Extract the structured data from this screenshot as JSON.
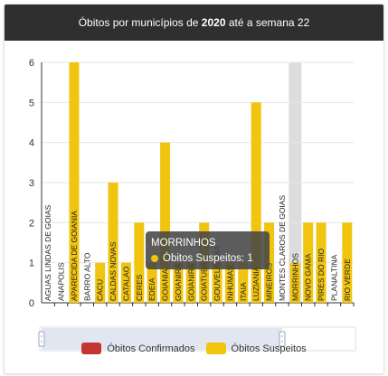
{
  "header": {
    "title_prefix": "Óbitos por municípios de",
    "year": "2020",
    "title_mid": "até a semana",
    "week": "22"
  },
  "colors": {
    "confirmed": "#c23531",
    "suspected": "#f1c40f",
    "highlight": "#dddddd",
    "header_bg": "#2f2f2f"
  },
  "chart_data": {
    "type": "bar",
    "ylim": [
      0,
      6
    ],
    "yticks": [
      0,
      1,
      2,
      3,
      4,
      5,
      6
    ],
    "categories": [
      "AGUAS LINDAS DE GOIAS",
      "ANAPOLIS",
      "APARECIDA DE GOIANIA",
      "BARRO ALTO",
      "CACU",
      "CALDAS NOVAS",
      "CATALAO",
      "CERES",
      "EDEIA",
      "GOIANIA",
      "GOIANIRA",
      "GOIANIRA",
      "GOIATUBA",
      "GOUVELANDIA",
      "INHUMAS",
      "ITAIA",
      "LUZIANIA",
      "MINEIROS",
      "MONTES CLAROS DE GOIAS",
      "MORRINHOS",
      "NOVO GAMA",
      "PIRES DO RIO",
      "PLANALTINA",
      "RIO VERDE"
    ],
    "series": [
      {
        "name": "Óbitos Confirmados",
        "values": [
          0,
          0,
          0,
          0,
          0,
          0,
          0,
          0,
          0,
          0,
          0,
          0,
          0,
          0,
          0,
          0,
          0,
          0,
          0,
          0,
          0,
          0,
          0,
          0
        ]
      },
      {
        "name": "Óbitos Suspeitos",
        "values": [
          0,
          0,
          6,
          0,
          1,
          3,
          1,
          2,
          1,
          4,
          1,
          1,
          2,
          1,
          1,
          1,
          5,
          2,
          0,
          1,
          2,
          2,
          0,
          2
        ]
      }
    ],
    "highlighted_category": "MORRINHOS",
    "legend_position": "bottom"
  },
  "tooltip": {
    "title": "MORRINHOS",
    "label": "Óbitos Suspeitos: 1"
  },
  "legend": [
    {
      "label": "Óbitos Confirmados",
      "color": "#c23531"
    },
    {
      "label": "Óbitos Suspeitos",
      "color": "#f1c40f"
    }
  ]
}
